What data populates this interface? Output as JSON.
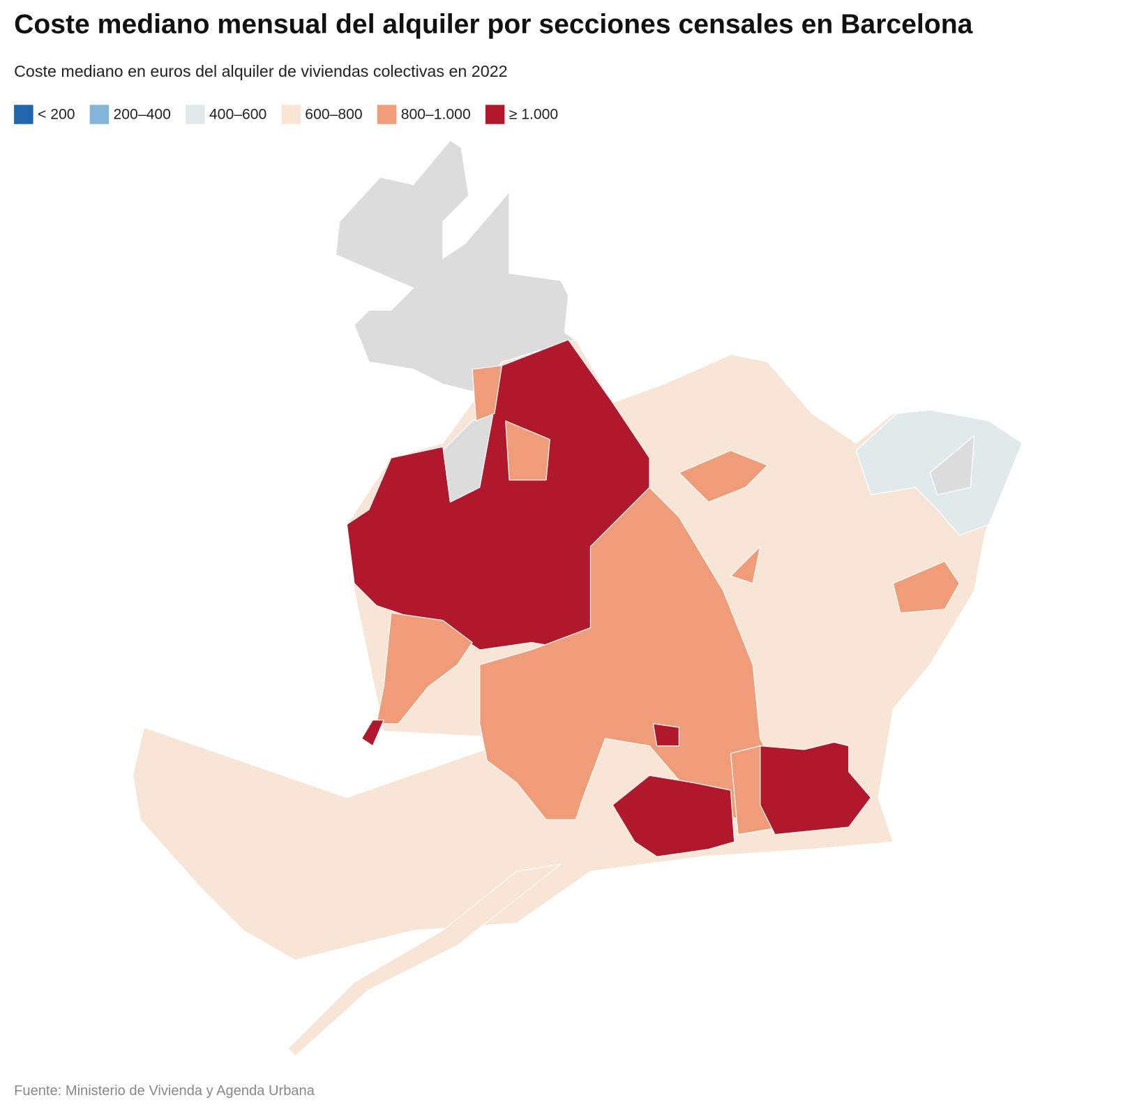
{
  "title": "Coste mediano mensual del alquiler por secciones censales en Barcelona",
  "subtitle": "Coste mediano en euros del alquiler de viviendas colectivas en 2022",
  "legend": {
    "items": [
      {
        "label": "< 200",
        "color": "#2166ac"
      },
      {
        "label": "200–400",
        "color": "#82b6d8"
      },
      {
        "label": "400–600",
        "color": "#e0eaea"
      },
      {
        "label": "600–800",
        "color": "#f9e5d6"
      },
      {
        "label": "800–1.000",
        "color": "#f09c78"
      },
      {
        "label": "≥ 1.000",
        "color": "#b2182b"
      }
    ]
  },
  "source": "Fuente: Ministerio de Vivienda y Agenda Urbana"
}
